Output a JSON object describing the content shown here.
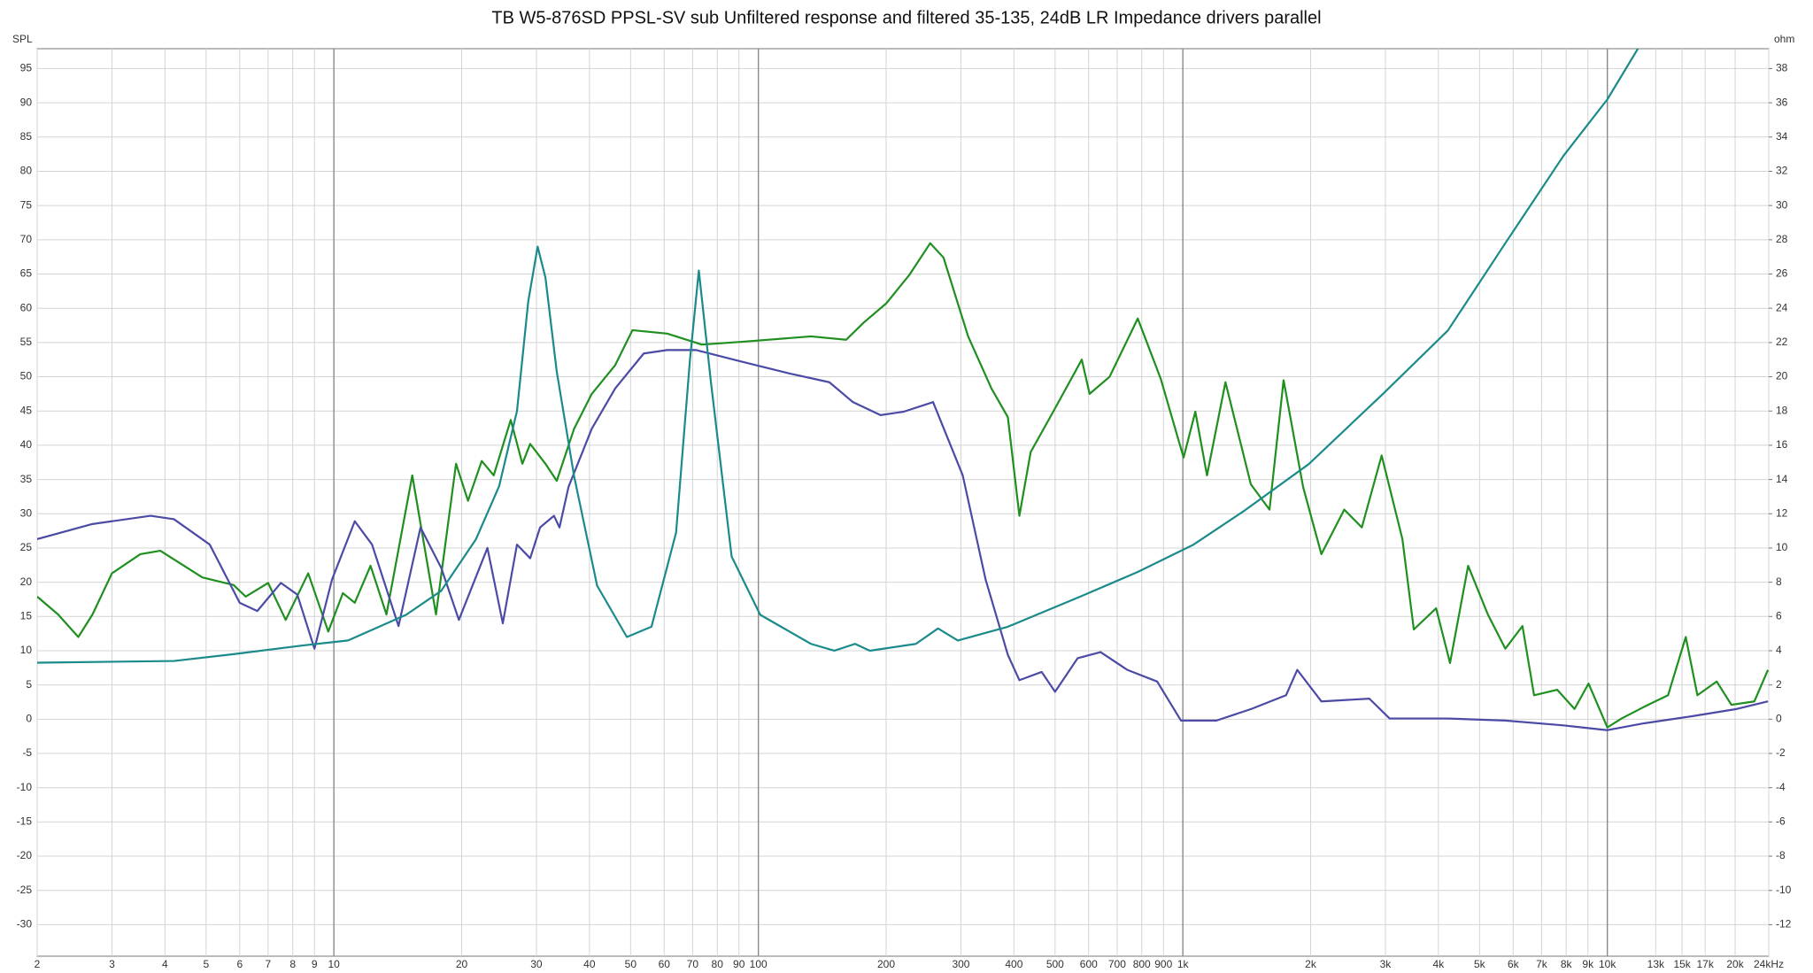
{
  "chart_data": {
    "type": "line",
    "title": "TB W5-876SD PPSL-SV sub Unfiltered response and filtered 35-135, 24dB LR Impedance drivers parallel",
    "ylabel": "SPL",
    "y2label": "ohm",
    "xscale": "log",
    "grid": true,
    "xlim": [
      2,
      24000
    ],
    "ylim": [
      -34.6,
      97.9
    ],
    "y2lim": [
      -13.84,
      39.16
    ],
    "xticks": [
      2,
      3,
      4,
      5,
      6,
      7,
      8,
      9,
      10,
      20,
      30,
      40,
      50,
      60,
      70,
      80,
      90,
      100,
      200,
      300,
      400,
      500,
      600,
      700,
      800,
      900,
      {
        "value": 1000,
        "label": "1k"
      },
      {
        "value": 2000,
        "label": "2k"
      },
      {
        "value": 3000,
        "label": "3k"
      },
      {
        "value": 4000,
        "label": "4k"
      },
      {
        "value": 5000,
        "label": "5k"
      },
      {
        "value": 6000,
        "label": "6k"
      },
      {
        "value": 7000,
        "label": "7k"
      },
      {
        "value": 8000,
        "label": "8k"
      },
      {
        "value": 9000,
        "label": "9k"
      },
      {
        "value": 10000,
        "label": "10k"
      },
      {
        "value": 13000,
        "label": "13k"
      },
      {
        "value": 15000,
        "label": "15k"
      },
      {
        "value": 17000,
        "label": "17k"
      },
      {
        "value": 20000,
        "label": "20k"
      },
      {
        "value": 24000,
        "label": "24kHz"
      }
    ],
    "yticks": [
      95,
      90,
      85,
      80,
      75,
      70,
      65,
      60,
      55,
      50,
      45,
      40,
      35,
      30,
      25,
      20,
      15,
      10,
      5,
      0,
      -5,
      -10,
      -15,
      -20,
      -25,
      -30
    ],
    "y2ticks": [
      38,
      36,
      34,
      32,
      30,
      28,
      26,
      24,
      22,
      20,
      18,
      16,
      14,
      12,
      10,
      8,
      6,
      4,
      2,
      0,
      -2,
      -4,
      -6,
      -8,
      -10,
      -12
    ],
    "series": [
      {
        "color": "#1f8f1f",
        "x": [
          2,
          2.24,
          2.5,
          2.7,
          3,
          3.5,
          3.9,
          4.9,
          5.8,
          6.2,
          7,
          7.7,
          8.7,
          9.7,
          10.5,
          11.2,
          12.2,
          13.3,
          15.3,
          17.4,
          19.4,
          20.7,
          22.3,
          23.8,
          26.1,
          27.8,
          29,
          31.5,
          33.5,
          36.8,
          40.5,
          46,
          50.5,
          61,
          73.6,
          91.5,
          133,
          161,
          177,
          200,
          227,
          254,
          273,
          312,
          354,
          387,
          412,
          438,
          495,
          578,
          603,
          672,
          783,
          887,
          1004,
          1070,
          1140,
          1260,
          1446,
          1600,
          1727,
          1920,
          2120,
          2400,
          2640,
          2940,
          3290,
          3500,
          3950,
          4260,
          4700,
          5230,
          5750,
          6310,
          6720,
          7620,
          8370,
          9030,
          10000,
          10800,
          12200,
          13900,
          15300,
          16300,
          18100,
          19600,
          22200,
          23900
        ],
        "values": [
          17.9,
          15.3,
          12,
          15.3,
          21.3,
          24.1,
          24.6,
          20.7,
          19.6,
          17.9,
          19.9,
          14.5,
          21.3,
          12.8,
          18.4,
          17,
          22.4,
          15.3,
          35.6,
          15.3,
          37.3,
          31.9,
          37.7,
          35.6,
          43.7,
          37.3,
          40.2,
          37.3,
          34.8,
          42.4,
          47.5,
          51.7,
          56.8,
          56.3,
          54.7,
          55.1,
          55.9,
          55.4,
          57.9,
          60.7,
          64.9,
          69.5,
          67.4,
          55.9,
          48.3,
          44.1,
          29.7,
          39,
          44.9,
          52.5,
          47.5,
          50,
          58.5,
          49.7,
          38.2,
          44.9,
          35.6,
          49.2,
          34.3,
          30.6,
          49.5,
          33.9,
          24.1,
          30.6,
          28,
          38.5,
          26.3,
          13.1,
          16.2,
          8.2,
          22.4,
          15.3,
          10.3,
          13.6,
          3.5,
          4.3,
          1.5,
          5.2,
          -1.2,
          0.1,
          1.8,
          3.5,
          12,
          3.5,
          5.5,
          2.1,
          2.6,
          7.2
        ]
      },
      {
        "color": "#4b4ba6",
        "x": [
          2,
          2.7,
          3.7,
          4.2,
          5.1,
          6,
          6.6,
          7.5,
          8.2,
          9,
          9.9,
          11.2,
          12.3,
          14.2,
          16,
          17.9,
          19.7,
          23,
          25,
          27,
          29,
          30.6,
          33,
          34,
          35.7,
          40.5,
          46,
          53.7,
          61,
          71.4,
          91.5,
          118,
          147,
          167,
          194,
          220,
          258,
          303,
          343,
          387,
          412,
          465,
          500,
          565,
          640,
          740,
          870,
          990,
          1200,
          1450,
          1750,
          1860,
          2120,
          2750,
          3070,
          4210,
          5750,
          7880,
          10000,
          12200,
          15700,
          20200,
          23900
        ],
        "values": [
          26.3,
          28.5,
          29.7,
          29.2,
          25.5,
          17,
          15.8,
          19.9,
          18.2,
          10.3,
          20.4,
          28.9,
          25.5,
          13.6,
          28,
          22.1,
          14.5,
          25,
          14,
          25.5,
          23.5,
          28,
          29.7,
          28,
          33.9,
          42.4,
          48.3,
          53.4,
          53.9,
          53.9,
          52.2,
          50.5,
          49.2,
          46.3,
          44.4,
          44.9,
          46.3,
          35.6,
          20.4,
          9.4,
          5.7,
          6.9,
          4,
          8.9,
          9.8,
          7.2,
          5.5,
          -0.2,
          -0.2,
          1.5,
          3.5,
          7.2,
          2.6,
          3,
          0.1,
          0.1,
          -0.2,
          -0.9,
          -1.6,
          -0.6,
          0.4,
          1.5,
          2.6
        ]
      },
      {
        "color": "#1b8a8a",
        "axis": "y2",
        "x": [
          2,
          4.2,
          5.8,
          8.4,
          10.8,
          14.8,
          17.9,
          21.6,
          24.5,
          27,
          28.7,
          30.2,
          31.5,
          33.5,
          36.8,
          41.7,
          49,
          56,
          64,
          69,
          72.4,
          77.3,
          86.5,
          101,
          133,
          151,
          169,
          183,
          235,
          265,
          295,
          387,
          578,
          783,
          1060,
          1400,
          1980,
          2960,
          4210,
          5750,
          7880,
          10000,
          11830
        ],
        "values": [
          3.3,
          3.4,
          3.8,
          4.3,
          4.6,
          6.1,
          7.5,
          10.5,
          13.6,
          18,
          24.4,
          27.6,
          25.8,
          20.3,
          14.2,
          7.8,
          4.8,
          5.4,
          10.9,
          21,
          26.2,
          19.7,
          9.5,
          6.1,
          4.4,
          4,
          4.4,
          4,
          4.4,
          5.3,
          4.6,
          5.4,
          7.2,
          8.6,
          10.2,
          12.2,
          14.9,
          19,
          22.7,
          27.8,
          32.9,
          36.2,
          39.2
        ]
      }
    ]
  }
}
